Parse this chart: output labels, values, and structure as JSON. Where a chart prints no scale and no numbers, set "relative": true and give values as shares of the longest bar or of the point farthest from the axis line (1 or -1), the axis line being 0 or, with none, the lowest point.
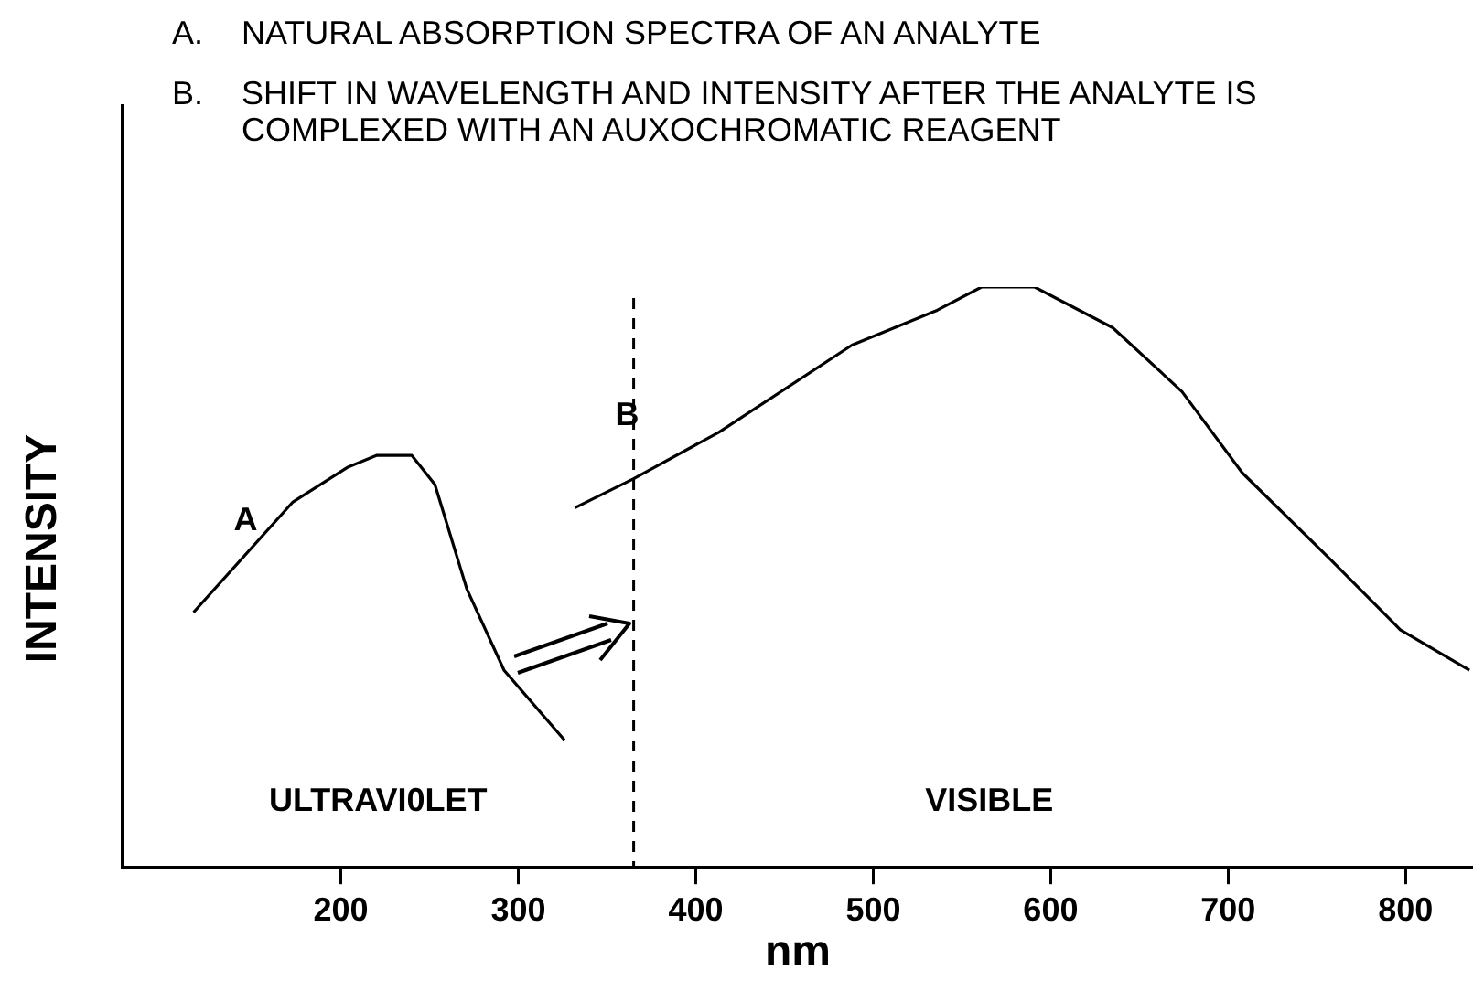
{
  "chart_data": {
    "type": "line",
    "xlabel": "nm",
    "ylabel": "INTENSITY",
    "relative": true,
    "xlim": [
      77,
      838
    ],
    "xticks": [
      200,
      300,
      400,
      500,
      600,
      700,
      800
    ],
    "grid": false,
    "legend": false,
    "marker": "none",
    "line_style": "solid",
    "series": [
      {
        "name": "A",
        "color": "#000000",
        "x": [
          117,
          173,
          204,
          220,
          240,
          253,
          271,
          292,
          326
        ],
        "values": [
          0.44,
          0.63,
          0.69,
          0.71,
          0.71,
          0.66,
          0.48,
          0.34,
          0.22
        ]
      },
      {
        "name": "B",
        "color": "#000000",
        "x": [
          332,
          365,
          413,
          488,
          536,
          561,
          591,
          635,
          674,
          708,
          758,
          797,
          836
        ],
        "values": [
          0.62,
          0.67,
          0.75,
          0.9,
          0.96,
          1.0,
          1.0,
          0.93,
          0.82,
          0.68,
          0.53,
          0.41,
          0.34
        ]
      }
    ],
    "ref_lines": [
      {
        "axis": "x",
        "value": 365,
        "line_style": "dashed",
        "color": "#000000"
      }
    ],
    "annotations": [
      "A.  NATURAL ABSORPTION SPECTRA OF AN ANALYTE",
      "B.  SHIFT IN WAVELENGTH AND INTENSITY AFTER THE ANALYTE IS COMPLEXED WITH AN AUXOCHROMATIC REAGENT",
      "ULTRAVI0LET",
      "VISIBLE"
    ]
  }
}
